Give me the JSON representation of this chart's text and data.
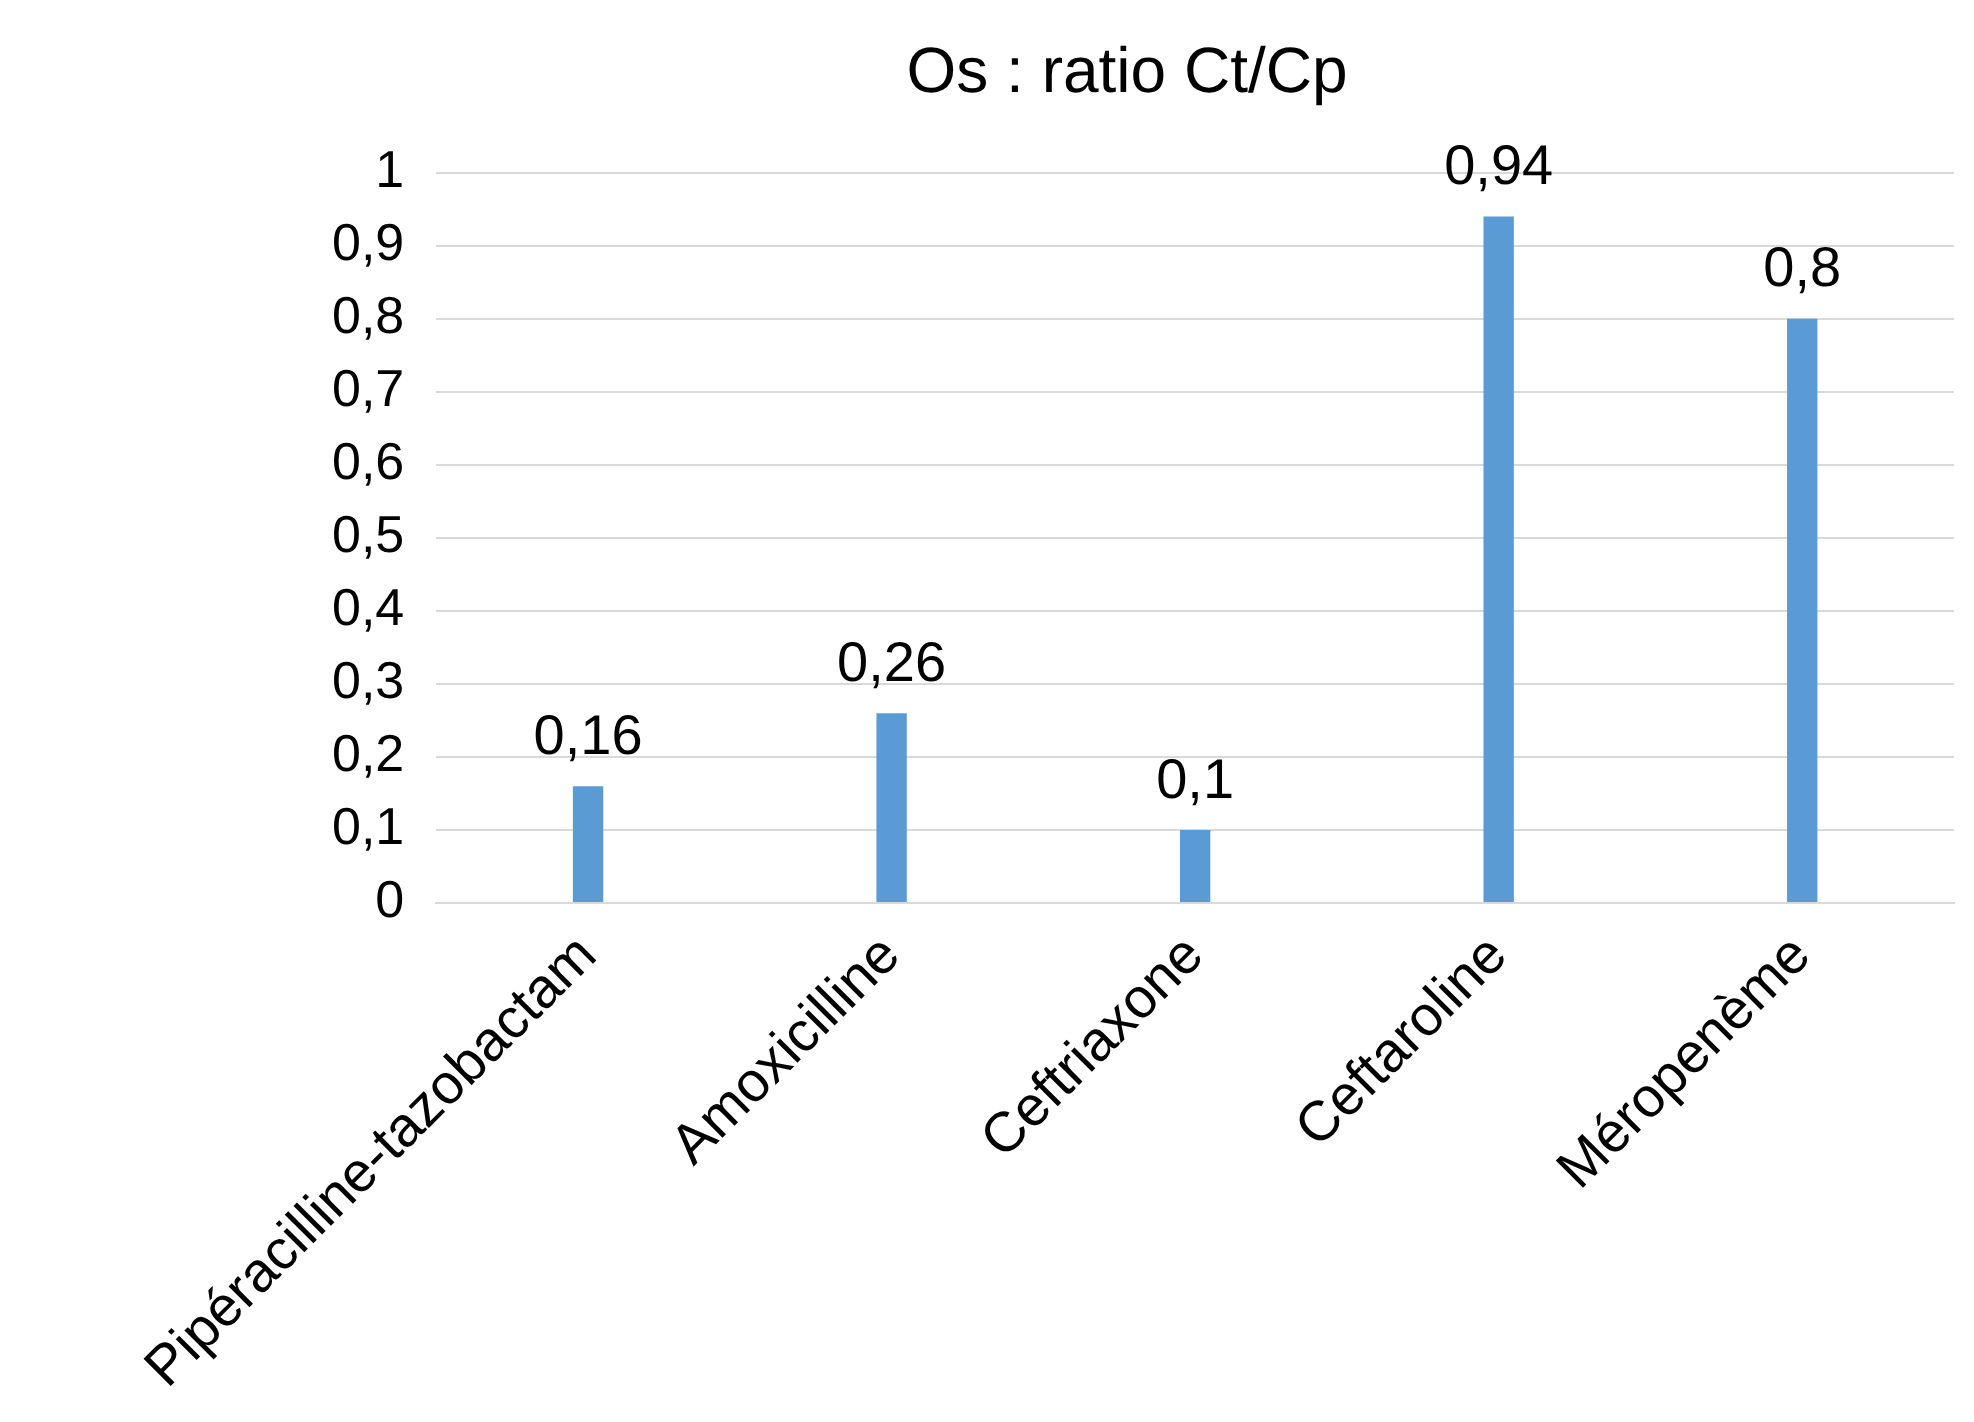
{
  "chart_data": {
    "type": "bar",
    "title": "Os : ratio Ct/Cp",
    "categories": [
      "Pipéracilline-tazobactam",
      "Amoxicilline",
      "Ceftriaxone",
      "Ceftaroline",
      "Méropenème"
    ],
    "values": [
      0.16,
      0.26,
      0.1,
      0.94,
      0.8
    ],
    "color": "#5b9bd5",
    "value_labels": [
      "0,16",
      "0,26",
      "0,1",
      "0,94",
      "0,8"
    ],
    "ylim": [
      0,
      1
    ],
    "yticks": [
      {
        "value": 0,
        "label": "0"
      },
      {
        "value": 0.1,
        "label": "0,1"
      },
      {
        "value": 0.2,
        "label": "0,2"
      },
      {
        "value": 0.3,
        "label": "0,3"
      },
      {
        "value": 0.4,
        "label": "0,4"
      },
      {
        "value": 0.5,
        "label": "0,5"
      },
      {
        "value": 0.6,
        "label": "0,6"
      },
      {
        "value": 0.7,
        "label": "0,7"
      },
      {
        "value": 0.8,
        "label": "0,8"
      },
      {
        "value": 0.9,
        "label": "0,9"
      },
      {
        "value": 1,
        "label": "1"
      }
    ],
    "grid": "y",
    "legend": false
  }
}
